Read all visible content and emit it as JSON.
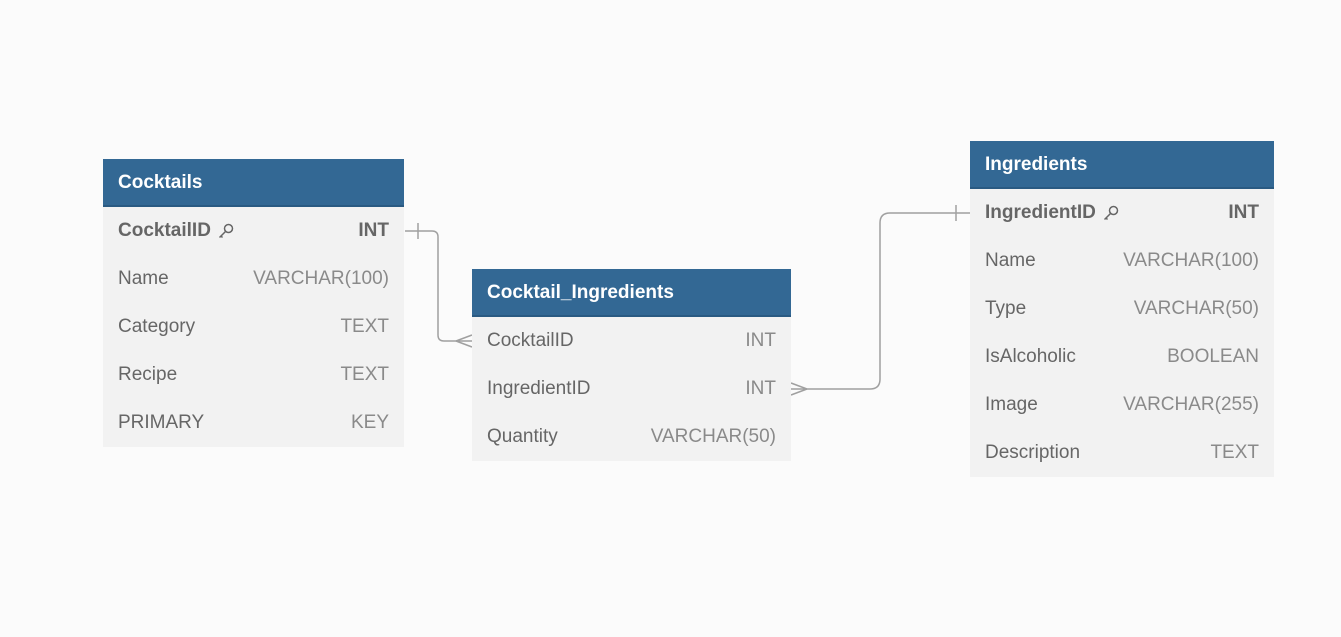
{
  "entities": {
    "cocktails": {
      "name": "Cocktails",
      "fields": [
        {
          "name": "CocktailID",
          "type": "INT",
          "primary_key": true
        },
        {
          "name": "Name",
          "type": "VARCHAR(100)"
        },
        {
          "name": "Category",
          "type": "TEXT"
        },
        {
          "name": "Recipe",
          "type": "TEXT"
        },
        {
          "name": "PRIMARY",
          "type": "KEY"
        }
      ]
    },
    "cocktail_ingredients": {
      "name": "Cocktail_Ingredients",
      "fields": [
        {
          "name": "CocktailID",
          "type": "INT"
        },
        {
          "name": "IngredientID",
          "type": "INT"
        },
        {
          "name": "Quantity",
          "type": "VARCHAR(50)"
        }
      ]
    },
    "ingredients": {
      "name": "Ingredients",
      "fields": [
        {
          "name": "IngredientID",
          "type": "INT",
          "primary_key": true
        },
        {
          "name": "Name",
          "type": "VARCHAR(100)"
        },
        {
          "name": "Type",
          "type": "VARCHAR(50)"
        },
        {
          "name": "IsAlcoholic",
          "type": "BOOLEAN"
        },
        {
          "name": "Image",
          "type": "VARCHAR(255)"
        },
        {
          "name": "Description",
          "type": "TEXT"
        }
      ]
    }
  },
  "relationships": [
    {
      "from": "Cocktails.CocktailID",
      "to": "Cocktail_Ingredients.CocktailID",
      "from_cardinality": "one",
      "to_cardinality": "many"
    },
    {
      "from": "Ingredients.IngredientID",
      "to": "Cocktail_Ingredients.IngredientID",
      "from_cardinality": "one",
      "to_cardinality": "many"
    }
  ],
  "colors": {
    "header_bg": "#336894",
    "header_text": "#ffffff",
    "body_bg": "#f2f2f2",
    "field_text": "#666666",
    "type_text": "#8a8a8a",
    "connector": "#a0a0a0",
    "canvas_bg": "#fbfbfb"
  },
  "icons": {
    "primary_key": "key-icon"
  }
}
